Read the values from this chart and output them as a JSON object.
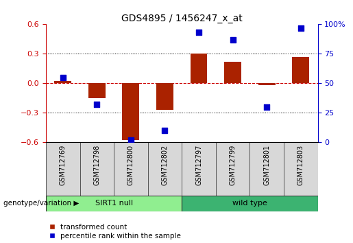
{
  "title": "GDS4895 / 1456247_x_at",
  "samples": [
    "GSM712769",
    "GSM712798",
    "GSM712800",
    "GSM712802",
    "GSM712797",
    "GSM712799",
    "GSM712801",
    "GSM712803"
  ],
  "transformed_count": [
    0.02,
    -0.15,
    -0.58,
    -0.27,
    0.3,
    0.22,
    -0.02,
    0.27
  ],
  "percentile_rank_pct": [
    55,
    32,
    2,
    10,
    93,
    87,
    30,
    97
  ],
  "groups": [
    {
      "label": "SIRT1 null",
      "start": 0,
      "end": 4,
      "color": "#90EE90"
    },
    {
      "label": "wild type",
      "start": 4,
      "end": 8,
      "color": "#3CB371"
    }
  ],
  "group_label": "genotype/variation",
  "ylim_left": [
    -0.6,
    0.6
  ],
  "ylim_right": [
    0,
    100
  ],
  "yticks_left": [
    -0.6,
    -0.3,
    0.0,
    0.3,
    0.6
  ],
  "yticks_right": [
    0,
    25,
    50,
    75,
    100
  ],
  "bar_color": "#AA2200",
  "dot_color": "#0000CC",
  "bar_width": 0.5,
  "dot_size": 35,
  "legend_items": [
    "transformed count",
    "percentile rank within the sample"
  ],
  "legend_colors": [
    "#AA2200",
    "#0000CC"
  ],
  "zero_line_color": "#CC0000",
  "grid_color": "#000000",
  "figsize": [
    5.15,
    3.54
  ],
  "dpi": 100
}
